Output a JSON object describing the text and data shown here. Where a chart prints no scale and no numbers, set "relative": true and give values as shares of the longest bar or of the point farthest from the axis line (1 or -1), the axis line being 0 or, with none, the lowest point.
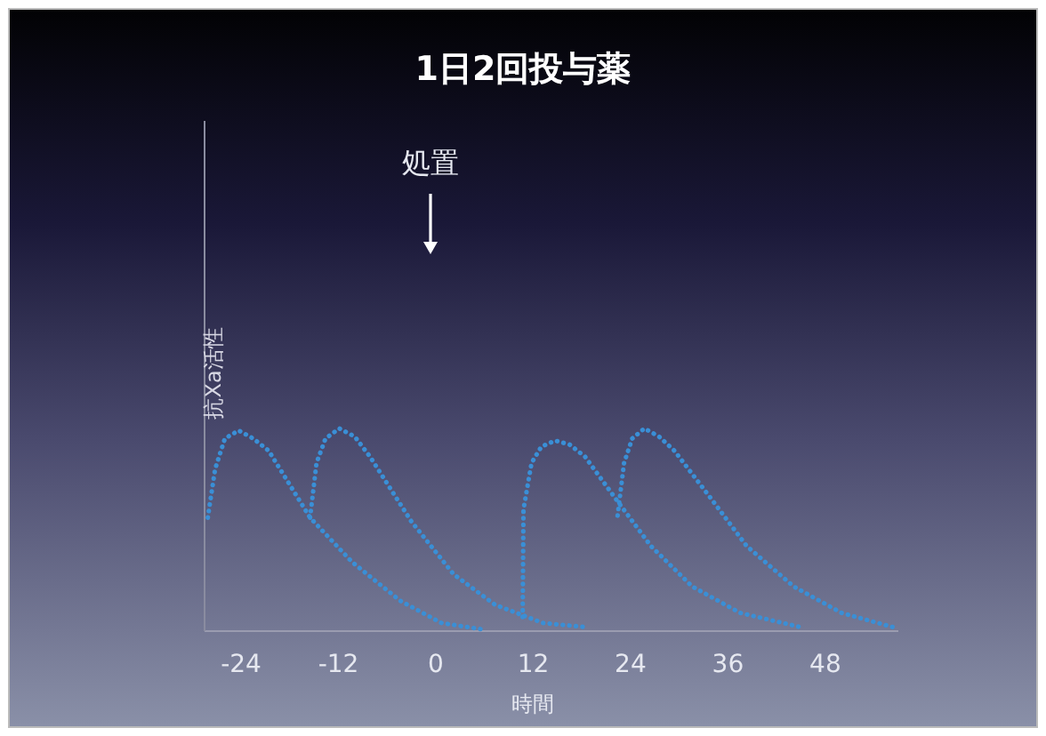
{
  "chart_data": {
    "type": "line",
    "title": "1日2回投与薬",
    "xlabel": "時間",
    "ylabel": "抗Xa活性",
    "relative": true,
    "xlim": [
      -28.5,
      57
    ],
    "xticks": [
      -24,
      -12,
      0,
      12,
      24,
      36,
      48
    ],
    "line_style": "dotted",
    "marker": "none",
    "grid": false,
    "annotations": [
      "処置"
    ],
    "series": [
      {
        "color": "#3a8fd6",
        "x": [
          -28.1,
          -27.2,
          -26.0,
          -24.3,
          -22.5,
          -20.6,
          -15.5,
          -10.3,
          -4.4,
          0.7,
          5.5
        ],
        "values": [
          0.56,
          0.8,
          0.95,
          0.99,
          0.95,
          0.89,
          0.56,
          0.34,
          0.15,
          0.04,
          0.01
        ]
      },
      {
        "color": "#3a8fd6",
        "x": [
          -15.5,
          -14.7,
          -13.6,
          -11.9,
          -10.0,
          -8.1,
          -3.0,
          2.2,
          7.3,
          13.2,
          18.4
        ],
        "values": [
          0.56,
          0.83,
          0.95,
          1.0,
          0.96,
          0.86,
          0.54,
          0.28,
          0.13,
          0.04,
          0.02
        ]
      },
      {
        "color": "#3a8fd6",
        "x": [
          10.7,
          10.8,
          11.8,
          13.0,
          14.7,
          16.5,
          18.4,
          22.4,
          26.5,
          31.6,
          37.5,
          44.9
        ],
        "values": [
          0.07,
          0.6,
          0.83,
          0.91,
          0.94,
          0.92,
          0.86,
          0.64,
          0.42,
          0.22,
          0.09,
          0.02
        ]
      },
      {
        "color": "#3a8fd6",
        "x": [
          22.4,
          23.2,
          24.2,
          25.7,
          27.5,
          29.4,
          33.8,
          38.3,
          44.1,
          50.0,
          56.3
        ],
        "values": [
          0.57,
          0.83,
          0.95,
          1.0,
          0.96,
          0.89,
          0.66,
          0.42,
          0.22,
          0.09,
          0.02
        ]
      }
    ]
  }
}
